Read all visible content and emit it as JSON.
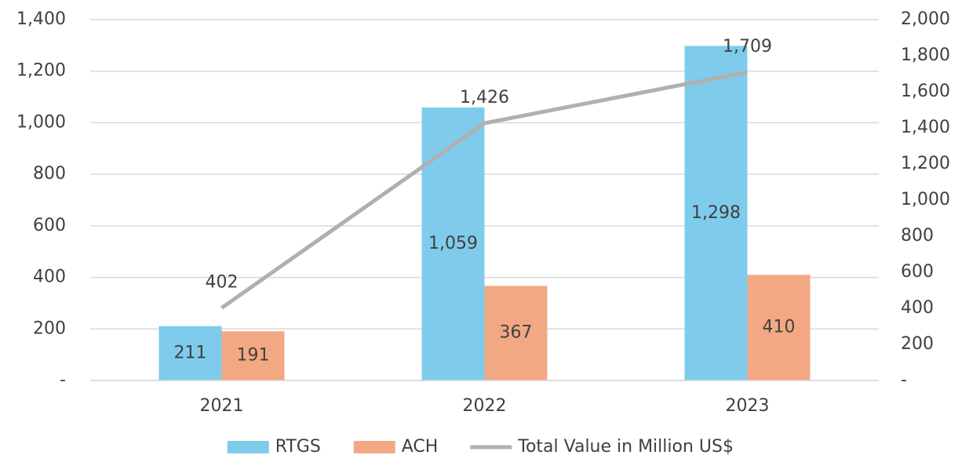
{
  "chart_data": {
    "type": "bar",
    "categories": [
      "2021",
      "2022",
      "2023"
    ],
    "series": [
      {
        "name": "RTGS",
        "color": "#7fcbec",
        "values": [
          211,
          1059,
          1298
        ],
        "value_labels": [
          "211",
          "1,059",
          "1,298"
        ]
      },
      {
        "name": "ACH",
        "color": "#f2a983",
        "values": [
          191,
          367,
          410
        ],
        "value_labels": [
          "191",
          "367",
          "410"
        ]
      },
      {
        "name": "Total Value in Million US$",
        "type": "line",
        "axis": "y2",
        "color": "#b0b0b0",
        "values": [
          402,
          1426,
          1709
        ],
        "value_labels": [
          "402",
          "1,426",
          "1,709"
        ]
      }
    ],
    "ylim": [
      0,
      1400
    ],
    "yticks": [
      {
        "value": 0,
        "label": "-"
      },
      200,
      400,
      600,
      800,
      {
        "value": 1000,
        "label": "1,000"
      },
      {
        "value": 1200,
        "label": "1,200"
      },
      {
        "value": 1400,
        "label": "1,400"
      }
    ],
    "y2lim": [
      0,
      2000
    ],
    "y2ticks": [
      {
        "value": 0,
        "label": "-"
      },
      200,
      400,
      600,
      800,
      {
        "value": 1000,
        "label": "1,000"
      },
      {
        "value": 1200,
        "label": "1,200"
      },
      {
        "value": 1400,
        "label": "1,400"
      },
      {
        "value": 1600,
        "label": "1,600"
      },
      {
        "value": 1800,
        "label": "1,800"
      },
      {
        "value": 2000,
        "label": "2,000"
      }
    ],
    "grid": true,
    "legend": "bottom"
  }
}
